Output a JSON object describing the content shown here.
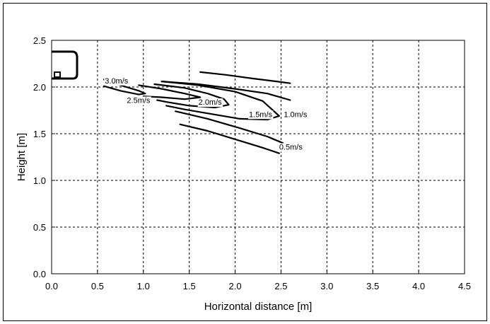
{
  "chart_data": {
    "type": "line",
    "title": "",
    "xlabel": "Horizontal distance [m]",
    "ylabel": "Height [m]",
    "xlim": [
      0.0,
      4.5
    ],
    "ylim": [
      0.0,
      2.5
    ],
    "xticks": [
      "0.0",
      "0.5",
      "1.0",
      "1.5",
      "2.0",
      "2.5",
      "3.0",
      "3.5",
      "4.0",
      "4.5"
    ],
    "yticks": [
      "0.0",
      "0.5",
      "1.0",
      "1.5",
      "2.0",
      "2.5"
    ],
    "grid": true,
    "legend": "none",
    "series": [
      {
        "name": "3.0m/s",
        "label_at": [
          0.58,
          2.07
        ],
        "x": [
          0.57,
          0.75,
          0.95,
          1.02,
          0.95,
          0.75,
          0.57
        ],
        "y": [
          2.08,
          2.02,
          1.96,
          1.93,
          1.92,
          1.96,
          2.01
        ]
      },
      {
        "name": "2.5m/s",
        "label_at": [
          0.82,
          1.86
        ],
        "x": [
          0.95,
          1.2,
          1.45,
          1.62,
          1.45,
          1.2,
          1.0
        ],
        "y": [
          2.02,
          1.98,
          1.93,
          1.89,
          1.87,
          1.89,
          1.9
        ]
      },
      {
        "name": "2.0m/s",
        "label_at": [
          1.6,
          1.84
        ],
        "x": [
          1.12,
          1.45,
          1.7,
          1.88,
          1.93,
          1.78,
          1.5,
          1.25,
          1.15
        ],
        "y": [
          2.03,
          1.99,
          1.93,
          1.87,
          1.81,
          1.78,
          1.8,
          1.84,
          1.86
        ]
      },
      {
        "name": "1.5m/s",
        "label_at": [
          2.15,
          1.71
        ],
        "x": [
          1.2,
          1.6,
          2.0,
          2.3,
          2.48,
          2.35,
          2.05,
          1.75,
          1.45,
          1.25
        ],
        "y": [
          2.06,
          2.02,
          1.95,
          1.85,
          1.69,
          1.65,
          1.66,
          1.71,
          1.76,
          1.8
        ]
      },
      {
        "name": "1.0m/s",
        "label_at": [
          2.53,
          1.71
        ],
        "x": [
          1.2,
          1.6,
          2.0,
          2.35,
          2.6
        ],
        "y": [
          2.06,
          2.03,
          1.98,
          1.93,
          1.86
        ]
      },
      {
        "name": "",
        "x": [
          1.35,
          1.7,
          2.05,
          2.35,
          2.52
        ],
        "y": [
          1.74,
          1.66,
          1.56,
          1.47,
          1.4
        ]
      },
      {
        "name": "0.5m/s",
        "label_at": [
          2.48,
          1.36
        ],
        "x": [
          1.62,
          1.9,
          2.2,
          2.45,
          2.6
        ],
        "y": [
          2.16,
          2.13,
          2.09,
          2.06,
          2.04
        ]
      },
      {
        "name": "",
        "x": [
          1.4,
          1.7,
          2.0,
          2.3,
          2.48
        ],
        "y": [
          1.6,
          1.53,
          1.44,
          1.35,
          1.29
        ]
      }
    ]
  }
}
